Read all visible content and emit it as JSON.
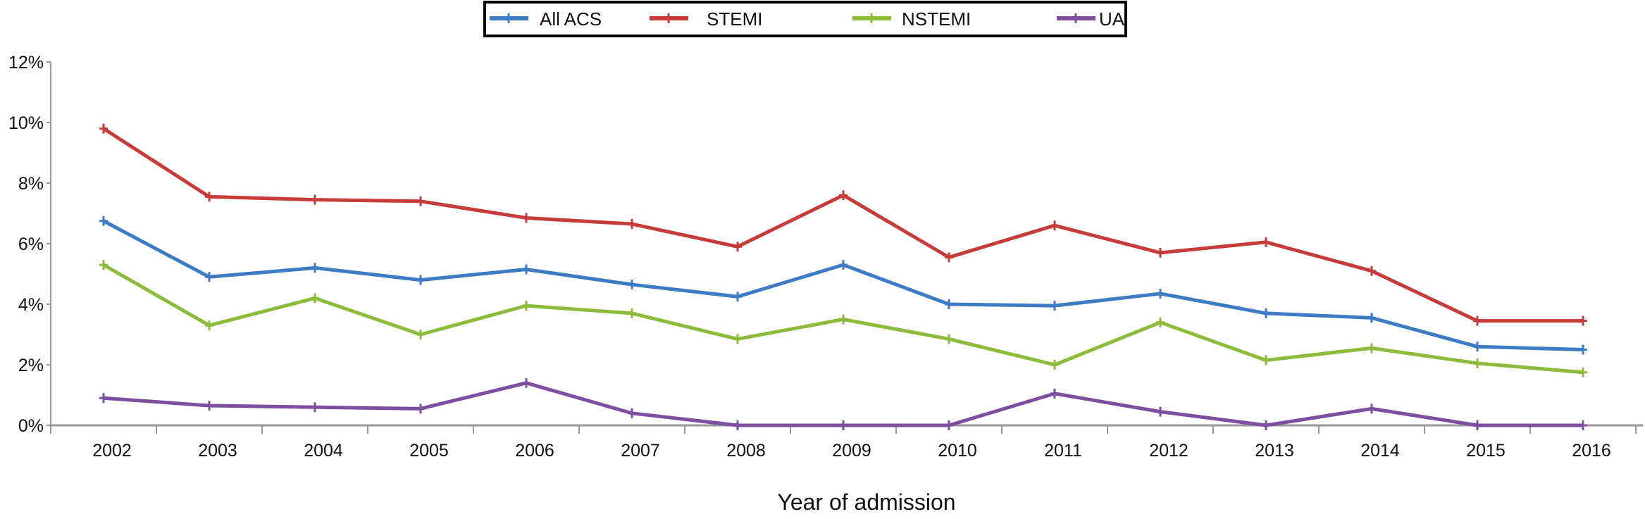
{
  "chart_data": {
    "type": "line",
    "title": "",
    "xlabel": "Year of admission",
    "ylabel": "",
    "x": [
      "2002",
      "2003",
      "2004",
      "2005",
      "2006",
      "2007",
      "2008",
      "2009",
      "2010",
      "2011",
      "2012",
      "2013",
      "2014",
      "2015",
      "2016"
    ],
    "ylim": [
      0,
      12
    ],
    "yticks": [
      0,
      2,
      4,
      6,
      8,
      10,
      12
    ],
    "ytick_labels": [
      "0%",
      "2%",
      "4%",
      "6%",
      "8%",
      "10%",
      "12%"
    ],
    "grid": false,
    "legend_position": "top-center",
    "series": [
      {
        "name": "All ACS",
        "color": "#3d7cc4",
        "values": [
          6.75,
          4.9,
          5.2,
          4.8,
          5.15,
          4.65,
          4.25,
          5.3,
          4.0,
          3.95,
          4.35,
          3.7,
          3.55,
          2.6,
          2.5
        ]
      },
      {
        "name": "STEMI",
        "color": "#c63c3a",
        "values": [
          9.8,
          7.55,
          7.45,
          7.4,
          6.85,
          6.65,
          5.9,
          7.6,
          5.55,
          6.6,
          5.7,
          6.05,
          5.1,
          3.45,
          3.45
        ]
      },
      {
        "name": "NSTEMI",
        "color": "#8dbb3c",
        "values": [
          5.3,
          3.3,
          4.2,
          3.0,
          3.95,
          3.7,
          2.85,
          3.5,
          2.85,
          2.0,
          3.4,
          2.15,
          2.55,
          2.05,
          1.75
        ]
      },
      {
        "name": "UA",
        "color": "#7e4fa0",
        "values": [
          0.9,
          0.65,
          0.6,
          0.55,
          1.4,
          0.4,
          0,
          0,
          0,
          1.05,
          0.45,
          0,
          0.55,
          0,
          0
        ]
      }
    ]
  }
}
